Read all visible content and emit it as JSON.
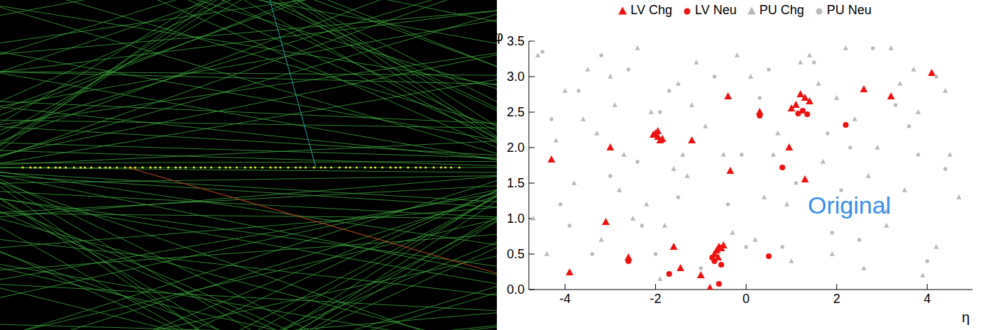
{
  "chart_data": {
    "type": "scatter",
    "x_label": "η",
    "y_label": "φ",
    "annotation": "Original",
    "legend": "top",
    "xlim": [
      -4.8,
      5
    ],
    "xticks": [
      -4,
      -2,
      0,
      2,
      4
    ],
    "ylim": [
      0,
      3.5
    ],
    "yticks": [
      {
        "value": 0,
        "label": "0.0"
      },
      0.5,
      {
        "value": 1,
        "label": "1.0"
      },
      1.5,
      {
        "value": 2,
        "label": "2.0"
      },
      2.5,
      {
        "value": 3,
        "label": "3.0"
      },
      3.5
    ],
    "series": [
      {
        "name": "LV Chg",
        "color": "#ee1111",
        "marker": "triangle",
        "x": [
          -2,
          -1.95,
          -1.9,
          -2.05,
          -1.85,
          -1.95,
          -0.6,
          -0.65,
          -0.55,
          -0.5,
          -0.7,
          -0.62,
          1.3,
          1.2,
          1.1,
          1.4,
          1.0,
          4.1,
          -4.3,
          -3.9,
          -3,
          -3.1,
          -2.6,
          -1.2,
          0.3,
          -0.4,
          0.95,
          2.6,
          3.2,
          1.3,
          -0.35,
          -1.45,
          -0.8,
          -1.0,
          -1.6
        ],
        "y": [
          2.2,
          2.15,
          2.1,
          2.18,
          2.12,
          2.23,
          0.6,
          0.55,
          0.58,
          0.62,
          0.5,
          0.45,
          2.7,
          2.75,
          2.6,
          2.65,
          2.55,
          3.05,
          1.83,
          0.24,
          2.0,
          0.95,
          0.45,
          2.1,
          2.5,
          2.72,
          2.0,
          2.82,
          2.72,
          1.55,
          1.67,
          0.3,
          0.02,
          0.2,
          0.6
        ]
      },
      {
        "name": "LV Neu",
        "color": "#ee1111",
        "marker": "circle",
        "x": [
          -0.7,
          -0.55,
          -0.75,
          0.5,
          0.3,
          1.35,
          2.2,
          1.25,
          -0.6,
          -1.7,
          -2.6,
          0.8,
          1.15
        ],
        "y": [
          0.4,
          0.35,
          0.45,
          0.47,
          2.45,
          2.47,
          2.32,
          2.52,
          0.08,
          0.22,
          0.4,
          1.72,
          2.48
        ]
      },
      {
        "name": "PU Chg",
        "color": "#bbbbbb",
        "marker": "triangle",
        "x": [
          -4.6,
          -4.2,
          -3.8,
          -3.5,
          -3.2,
          -2.9,
          -2.7,
          -2.4,
          -2.2,
          -1.8,
          -1.5,
          -1.3,
          -1.1,
          -0.9,
          -0.3,
          0.1,
          0.4,
          0.7,
          1.0,
          1.4,
          1.7,
          2.0,
          2.3,
          2.6,
          2.9,
          3.2,
          3.5,
          3.8,
          4.2,
          4.5,
          -4.4,
          -3.6,
          -3.0,
          -2.5,
          -1.9,
          -1.2,
          -0.5,
          0.2,
          0.9,
          1.6,
          2.4,
          3.1,
          3.7,
          4.4,
          -4.0,
          -2.8,
          -1.6,
          -0.2,
          1.2,
          2.7,
          3.9,
          -3.3,
          -2.1,
          0.6,
          1.9,
          3.4,
          4.7,
          -4.7,
          -1.4,
          2.2
        ],
        "y": [
          3.3,
          2.1,
          1.5,
          3.1,
          0.7,
          2.6,
          1.9,
          3.4,
          1.2,
          0.9,
          2.9,
          1.6,
          3.2,
          2.3,
          0.8,
          3.0,
          1.3,
          2.2,
          0.4,
          3.3,
          1.8,
          2.7,
          1.1,
          0.3,
          2.0,
          3.4,
          1.4,
          2.5,
          0.6,
          1.9,
          0.5,
          2.4,
          3.0,
          1.0,
          0.15,
          2.6,
          1.9,
          0.7,
          1.2,
          2.9,
          2.4,
          0.9,
          3.1,
          2.8,
          2.8,
          1.4,
          1.7,
          3.3,
          3.2,
          1.6,
          0.2,
          2.2,
          2.5,
          1.9,
          0.5,
          2.9,
          1.3,
          1.0,
          1.9,
          3.4
        ]
      },
      {
        "name": "PU Neu",
        "color": "#bbbbbb",
        "marker": "circle",
        "x": [
          -4.5,
          -4.1,
          -3.7,
          -3.4,
          -3.0,
          -2.6,
          -2.3,
          -1.9,
          -1.5,
          -1.0,
          -0.7,
          -0.1,
          0.3,
          0.8,
          1.1,
          1.5,
          1.9,
          2.3,
          2.8,
          3.1,
          3.6,
          4.0,
          4.4,
          -4.3,
          -3.2,
          -2.4,
          -1.7,
          -0.4,
          0.5,
          1.8,
          2.5,
          3.3,
          4.2,
          -3.9,
          -2.0,
          0.0,
          2.1,
          3.8
        ],
        "y": [
          3.35,
          1.2,
          2.8,
          0.5,
          1.6,
          3.1,
          0.9,
          2.5,
          1.3,
          0.3,
          3.0,
          1.9,
          2.7,
          0.6,
          1.5,
          3.2,
          0.8,
          2.0,
          3.4,
          1.1,
          2.3,
          0.4,
          1.7,
          2.4,
          3.3,
          1.8,
          2.8,
          1.2,
          3.1,
          2.2,
          0.7,
          2.6,
          3.0,
          0.9,
          0.5,
          0.6,
          1.4,
          1.9
        ]
      }
    ]
  }
}
